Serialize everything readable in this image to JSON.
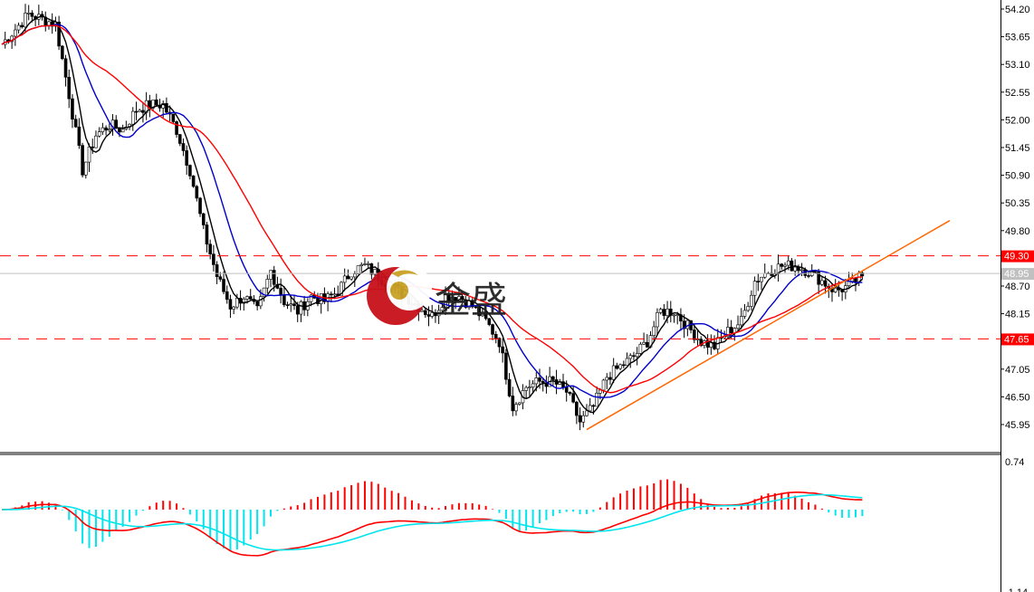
{
  "logo": {
    "text": "金盛"
  },
  "chart_data": {
    "type": "candlestick",
    "price_axis": {
      "max": 54.2,
      "min": 45.95,
      "ticks": [
        "54.20",
        "53.65",
        "53.10",
        "52.55",
        "52.00",
        "51.45",
        "50.90",
        "50.35",
        "49.80",
        "48.70",
        "48.15",
        "47.05",
        "46.50",
        "45.95"
      ]
    },
    "closes": [
      53.5,
      53.8,
      54.1,
      54.0,
      53.9,
      52.5,
      51.0,
      51.7,
      51.9,
      51.8,
      52.2,
      52.3,
      52.3,
      51.8,
      51.0,
      49.8,
      48.9,
      48.3,
      48.5,
      48.2,
      49.0,
      48.4,
      48.2,
      48.5,
      48.4,
      48.6,
      49.0,
      49.1,
      48.9,
      48.7,
      48.5,
      48.3,
      48.1,
      48.5,
      48.5,
      48.3,
      48.0,
      47.6,
      46.3,
      46.7,
      46.8,
      46.8,
      46.6,
      46.0,
      46.3,
      46.9,
      47.1,
      47.3,
      47.6,
      48.2,
      48.2,
      47.9,
      47.6,
      47.5,
      47.8,
      48.0,
      48.8,
      49.0,
      49.1,
      49.1,
      49.0,
      48.8,
      48.6,
      48.7,
      48.9
    ],
    "moving_averages": [
      {
        "color": "#000000",
        "period": 3
      },
      {
        "color": "#0000cc",
        "period": 8
      },
      {
        "color": "#ff0000",
        "period": 16
      }
    ],
    "horizontal_lines": [
      {
        "price": "49.30",
        "color": "#ff0000",
        "style": "dashed"
      },
      {
        "price": "47.65",
        "color": "#ff0000",
        "style": "dashed"
      },
      {
        "price": "48.95",
        "color": "#c0c0c0",
        "style": "solid",
        "current": true
      }
    ],
    "trendline": {
      "from_index": 43.5,
      "from_price": 45.85,
      "to_index": 70.5,
      "to_price": 50.0,
      "color": "#ff6600"
    },
    "indicator": {
      "type": "macd",
      "axis_max": "0.74",
      "axis_min": "-1.14",
      "histogram_colors": [
        "#ff0000",
        "#00e5ee"
      ],
      "line_colors": [
        "#ff0000",
        "#00e5ee"
      ]
    }
  }
}
